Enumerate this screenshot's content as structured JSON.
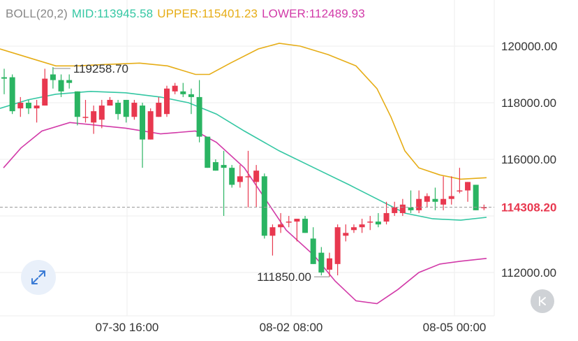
{
  "indicator": {
    "name": "BOLL(20,2)",
    "mid": "MID:113945.58",
    "upper": "UPPER:115401.23",
    "lower": "LOWER:112489.93"
  },
  "colors": {
    "up": "#e8384f",
    "down": "#2ab462",
    "mid": "#34c7a3",
    "upper": "#e6ad16",
    "lower": "#d23aa8",
    "grid": "#eeeeee",
    "axis_text": "#333333"
  },
  "price_label": "114308.20",
  "high_label": "119258.70",
  "low_label": "111850.00",
  "chart_data": {
    "type": "candlestick",
    "y_ticks": [
      "120000.00",
      "118000.00",
      "116000.00",
      "112000.00"
    ],
    "x_ticks": [
      "07-30 16:00",
      "08-02 08:00",
      "08-05 00:00"
    ],
    "ylim": [
      110500,
      120800
    ],
    "last_price": 114308.2,
    "candles": [
      [
        118900,
        119200,
        118300,
        118850
      ],
      [
        118900,
        119000,
        117600,
        117700
      ],
      [
        117800,
        118200,
        117500,
        118000
      ],
      [
        118000,
        118100,
        117600,
        117800
      ],
      [
        117800,
        118100,
        117300,
        117900
      ],
      [
        117900,
        119200,
        117900,
        118850
      ],
      [
        119000,
        119258.7,
        118500,
        118800
      ],
      [
        118800,
        119000,
        118200,
        118400
      ],
      [
        118800,
        119000,
        118500,
        118700
      ],
      [
        118400,
        118400,
        117200,
        117500
      ],
      [
        117500,
        118100,
        117300,
        117500
      ],
      [
        117300,
        117900,
        116900,
        117700
      ],
      [
        117400,
        118100,
        117100,
        117900
      ],
      [
        117900,
        118200,
        117900,
        118100
      ],
      [
        118000,
        118100,
        117400,
        117600
      ],
      [
        118100,
        118100,
        117300,
        117500
      ],
      [
        117500,
        118100,
        117400,
        118000
      ],
      [
        117900,
        118000,
        115700,
        116700
      ],
      [
        116700,
        117800,
        116700,
        117700
      ],
      [
        117500,
        118200,
        117500,
        118000
      ],
      [
        117600,
        118600,
        117500,
        118500
      ],
      [
        118400,
        118700,
        118300,
        118600
      ],
      [
        118400,
        118700,
        118200,
        118300
      ],
      [
        118300,
        118500,
        117600,
        118200
      ],
      [
        118200,
        118800,
        116600,
        116800
      ],
      [
        116800,
        116800,
        115700,
        115700
      ],
      [
        115900,
        116000,
        115600,
        115600
      ],
      [
        115800,
        116300,
        114000,
        115700
      ],
      [
        115700,
        115800,
        115000,
        115100
      ],
      [
        115200,
        115800,
        115000,
        115400
      ],
      [
        115400,
        116300,
        114300,
        115400
      ],
      [
        115200,
        115800,
        114300,
        115600
      ],
      [
        115400,
        115500,
        113200,
        113300
      ],
      [
        113300,
        113700,
        112600,
        113600
      ],
      [
        113600,
        114100,
        113400,
        113700
      ],
      [
        113800,
        114000,
        113600,
        113800
      ],
      [
        113800,
        113900,
        113100,
        113900
      ],
      [
        113900,
        114000,
        113400,
        113400
      ],
      [
        113200,
        113600,
        112300,
        112300
      ],
      [
        112700,
        112900,
        111900,
        112000
      ],
      [
        112100,
        112700,
        111850,
        112500
      ],
      [
        112300,
        113700,
        111900,
        113600
      ],
      [
        113300,
        113700,
        113100,
        113400
      ],
      [
        113500,
        113700,
        113400,
        113600
      ],
      [
        113600,
        113900,
        113400,
        113700
      ],
      [
        113800,
        114000,
        113500,
        113800
      ],
      [
        113800,
        114100,
        113600,
        113700
      ],
      [
        113800,
        114500,
        113700,
        114100
      ],
      [
        114100,
        114500,
        114000,
        114300
      ],
      [
        114100,
        114600,
        114000,
        114400
      ],
      [
        114300,
        114900,
        114100,
        114200
      ],
      [
        114200,
        114900,
        114100,
        114600
      ],
      [
        114500,
        114800,
        114300,
        114700
      ],
      [
        114600,
        115000,
        114200,
        114500
      ],
      [
        114400,
        115400,
        114200,
        114600
      ],
      [
        114600,
        115400,
        114400,
        114700
      ],
      [
        114900,
        115700,
        114800,
        114900
      ],
      [
        114900,
        115200,
        114500,
        115200
      ],
      [
        115100,
        115100,
        114200,
        114200
      ],
      [
        114300,
        114400,
        114200,
        114308.2
      ]
    ],
    "upper": [
      [
        0,
        119900
      ],
      [
        40,
        119600
      ],
      [
        80,
        119300
      ],
      [
        110,
        119300
      ],
      [
        150,
        119350
      ],
      [
        200,
        119400
      ],
      [
        240,
        119300
      ],
      [
        280,
        119000
      ],
      [
        300,
        119000
      ],
      [
        330,
        119400
      ],
      [
        370,
        119900
      ],
      [
        400,
        120100
      ],
      [
        430,
        120000
      ],
      [
        470,
        119700
      ],
      [
        510,
        119300
      ],
      [
        540,
        118500
      ],
      [
        560,
        117500
      ],
      [
        580,
        116300
      ],
      [
        600,
        115700
      ],
      [
        630,
        115450
      ],
      [
        660,
        115300
      ],
      [
        697,
        115350
      ]
    ],
    "mid": [
      [
        0,
        117800
      ],
      [
        40,
        118100
      ],
      [
        80,
        118300
      ],
      [
        130,
        118400
      ],
      [
        180,
        118350
      ],
      [
        230,
        118200
      ],
      [
        270,
        118000
      ],
      [
        310,
        117600
      ],
      [
        350,
        117000
      ],
      [
        400,
        116300
      ],
      [
        450,
        115700
      ],
      [
        500,
        115100
      ],
      [
        540,
        114600
      ],
      [
        580,
        114100
      ],
      [
        620,
        113900
      ],
      [
        660,
        113850
      ],
      [
        697,
        113950
      ]
    ],
    "lower": [
      [
        5,
        115700
      ],
      [
        30,
        116400
      ],
      [
        60,
        117000
      ],
      [
        100,
        117300
      ],
      [
        140,
        117200
      ],
      [
        180,
        117100
      ],
      [
        230,
        116900
      ],
      [
        280,
        117000
      ],
      [
        310,
        116600
      ],
      [
        350,
        115700
      ],
      [
        380,
        114600
      ],
      [
        410,
        113500
      ],
      [
        450,
        112600
      ],
      [
        480,
        111700
      ],
      [
        510,
        111000
      ],
      [
        540,
        110900
      ],
      [
        570,
        111400
      ],
      [
        600,
        112000
      ],
      [
        630,
        112300
      ],
      [
        660,
        112400
      ],
      [
        697,
        112500
      ]
    ]
  }
}
